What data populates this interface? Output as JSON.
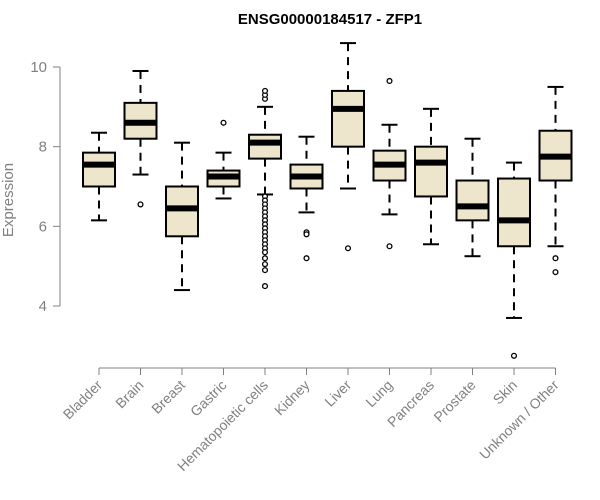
{
  "chart_data": {
    "type": "boxplot",
    "title": "ENSG00000184517 - ZFP1",
    "xlabel": "",
    "ylabel": "Expression",
    "ylim": [
      2.6,
      10.8
    ],
    "yticks": [
      4,
      6,
      8,
      10
    ],
    "grid": false,
    "colors": {
      "box_fill": "#ede5cc",
      "stroke": "#000000",
      "axis": "#808080"
    },
    "categories": [
      "Bladder",
      "Brain",
      "Breast",
      "Gastric",
      "Hematopoietic cells",
      "Kidney",
      "Liver",
      "Lung",
      "Pancreas",
      "Prostate",
      "Skin",
      "Unknown / Other"
    ],
    "boxes": [
      {
        "whisker_low": 6.15,
        "q1": 7.0,
        "median": 7.55,
        "q3": 7.85,
        "whisker_high": 8.35,
        "outliers": []
      },
      {
        "whisker_low": 7.3,
        "q1": 8.2,
        "median": 8.6,
        "q3": 9.1,
        "whisker_high": 9.9,
        "outliers": [
          6.55
        ]
      },
      {
        "whisker_low": 4.4,
        "q1": 5.75,
        "median": 6.45,
        "q3": 7.0,
        "whisker_high": 8.1,
        "outliers": []
      },
      {
        "whisker_low": 6.7,
        "q1": 7.0,
        "median": 7.25,
        "q3": 7.4,
        "whisker_high": 7.85,
        "outliers": [
          8.6
        ]
      },
      {
        "whisker_low": 6.8,
        "q1": 7.7,
        "median": 8.1,
        "q3": 8.3,
        "whisker_high": 9.0,
        "outliers": [
          9.2,
          9.3,
          9.4,
          6.75,
          6.65,
          6.55,
          6.45,
          6.35,
          6.25,
          6.15,
          6.05,
          5.95,
          5.85,
          5.75,
          5.65,
          5.55,
          5.45,
          5.35,
          5.2,
          5.05,
          4.9,
          4.5
        ]
      },
      {
        "whisker_low": 6.35,
        "q1": 6.95,
        "median": 7.25,
        "q3": 7.55,
        "whisker_high": 8.25,
        "outliers": [
          5.85,
          5.8,
          5.2
        ]
      },
      {
        "whisker_low": 6.95,
        "q1": 8.0,
        "median": 8.95,
        "q3": 9.4,
        "whisker_high": 10.6,
        "outliers": [
          5.45
        ]
      },
      {
        "whisker_low": 6.3,
        "q1": 7.15,
        "median": 7.55,
        "q3": 7.9,
        "whisker_high": 8.55,
        "outliers": [
          9.65,
          5.5
        ]
      },
      {
        "whisker_low": 5.55,
        "q1": 6.75,
        "median": 7.6,
        "q3": 8.0,
        "whisker_high": 8.95,
        "outliers": []
      },
      {
        "whisker_low": 5.25,
        "q1": 6.15,
        "median": 6.5,
        "q3": 7.15,
        "whisker_high": 8.2,
        "outliers": []
      },
      {
        "whisker_low": 3.7,
        "q1": 5.5,
        "median": 6.15,
        "q3": 7.2,
        "whisker_high": 7.6,
        "outliers": [
          2.75
        ]
      },
      {
        "whisker_low": 5.5,
        "q1": 7.15,
        "median": 7.75,
        "q3": 8.4,
        "whisker_high": 9.5,
        "outliers": [
          5.2,
          4.85
        ]
      }
    ]
  }
}
